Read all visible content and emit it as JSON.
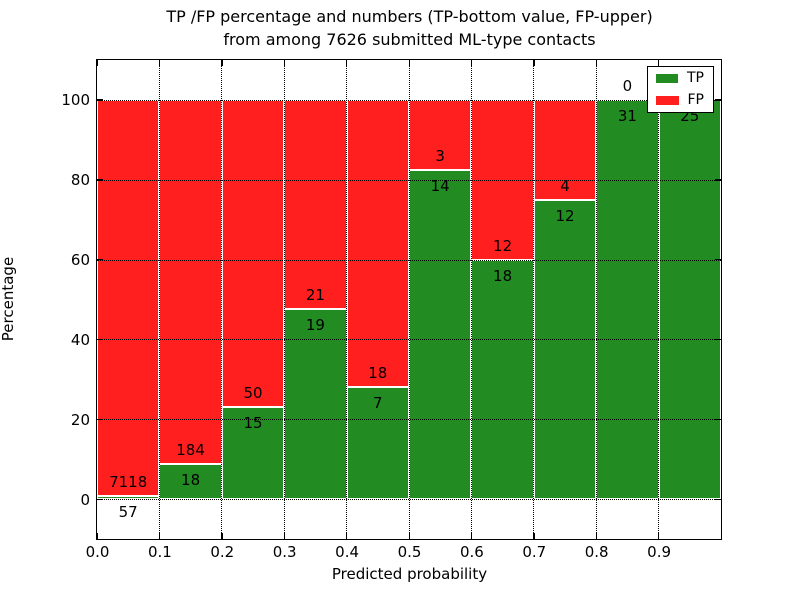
{
  "title": {
    "line1": "TP /FP percentage and numbers (TP-bottom value, FP-upper)",
    "line2": "from among 7626 submitted ML-type contacts"
  },
  "axes": {
    "xlabel": "Predicted probability",
    "ylabel": "Percentage",
    "ytick_labels": [
      "0",
      "20",
      "40",
      "60",
      "80",
      "100"
    ],
    "ytick_values": [
      0,
      20,
      40,
      60,
      80,
      100
    ],
    "xtick_labels": [
      "0.0",
      "0.1",
      "0.2",
      "0.3",
      "0.4",
      "0.5",
      "0.6",
      "0.7",
      "0.8",
      "0.9"
    ],
    "xtick_values": [
      0.0,
      0.1,
      0.2,
      0.3,
      0.4,
      0.5,
      0.6,
      0.7,
      0.8,
      0.9
    ]
  },
  "legend": {
    "items": [
      {
        "label": "TP",
        "color": "#228b22"
      },
      {
        "label": "FP",
        "color": "#ff1f1f"
      }
    ]
  },
  "colors": {
    "tp_green": "#228b22",
    "fp_red": "#ff1f1f",
    "bar_edge": "#ffffff",
    "grid": "#000000"
  },
  "chart_data": {
    "type": "bar",
    "stacked": true,
    "title": "TP /FP percentage and numbers (TP-bottom value, FP-upper) from among 7626 submitted ML-type contacts",
    "xlabel": "Predicted probability",
    "ylabel": "Percentage",
    "xlim": [
      0.0,
      1.0
    ],
    "ylim": [
      -10,
      110
    ],
    "grid": true,
    "legend_position": "upper right",
    "bin_width": 0.1,
    "series_order_note": "TP green on bottom, FP red stacked on top; bars normalized to 100%",
    "bins": [
      {
        "x0": 0.0,
        "x1": 0.1,
        "tp_count": 57,
        "fp_count": 7118,
        "tp_pct": 0.79
      },
      {
        "x0": 0.1,
        "x1": 0.2,
        "tp_count": 18,
        "fp_count": 184,
        "tp_pct": 8.91
      },
      {
        "x0": 0.2,
        "x1": 0.3,
        "tp_count": 15,
        "fp_count": 50,
        "tp_pct": 23.08
      },
      {
        "x0": 0.3,
        "x1": 0.4,
        "tp_count": 19,
        "fp_count": 21,
        "tp_pct": 47.5
      },
      {
        "x0": 0.4,
        "x1": 0.5,
        "tp_count": 7,
        "fp_count": 18,
        "tp_pct": 28.0
      },
      {
        "x0": 0.5,
        "x1": 0.6,
        "tp_count": 14,
        "fp_count": 3,
        "tp_pct": 82.35
      },
      {
        "x0": 0.6,
        "x1": 0.7,
        "tp_count": 18,
        "fp_count": 12,
        "tp_pct": 60.0
      },
      {
        "x0": 0.7,
        "x1": 0.8,
        "tp_count": 12,
        "fp_count": 4,
        "tp_pct": 75.0
      },
      {
        "x0": 0.8,
        "x1": 0.9,
        "tp_count": 31,
        "fp_count": 0,
        "tp_pct": 100.0
      },
      {
        "x0": 0.9,
        "x1": 1.0,
        "tp_count": 25,
        "fp_count": 0,
        "tp_pct": 100.0
      }
    ],
    "total_submitted": 7626
  }
}
